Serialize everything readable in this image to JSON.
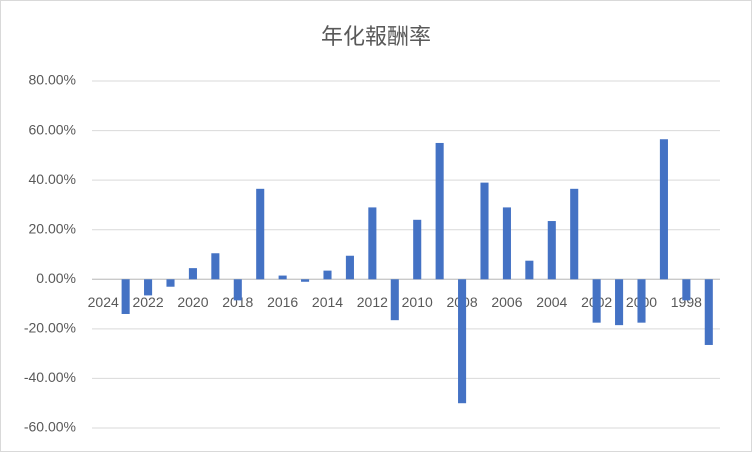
{
  "chart_data": {
    "type": "bar",
    "title": "年化報酬率",
    "categories": [
      "2024",
      null,
      "2022",
      null,
      "2020",
      null,
      "2018",
      null,
      "2016",
      null,
      "2014",
      null,
      "2012",
      null,
      "2010",
      null,
      "2008",
      null,
      "2006",
      null,
      "2004",
      null,
      "2002",
      null,
      "2000",
      null,
      "1998",
      null
    ],
    "values": [
      null,
      -14,
      -6.5,
      -3,
      4.5,
      10.5,
      -8.5,
      36.5,
      1.5,
      -1,
      3.5,
      9.5,
      29,
      -16.5,
      24,
      55,
      -50,
      39,
      29,
      7.5,
      23.5,
      36.5,
      -17.5,
      -18.5,
      -17.5,
      56.5,
      -8.5,
      -26.5
    ],
    "color": "#4472c4",
    "ylim": [
      -60,
      80
    ],
    "yticks": [
      {
        "value": -60,
        "label": "-60.00%"
      },
      {
        "value": -40,
        "label": "-40.00%"
      },
      {
        "value": -20,
        "label": "-20.00%"
      },
      {
        "value": 0,
        "label": "0.00%"
      },
      {
        "value": 20,
        "label": "20.00%"
      },
      {
        "value": 40,
        "label": "40.00%"
      },
      {
        "value": 60,
        "label": "60.00%"
      },
      {
        "value": 80,
        "label": "80.00%"
      }
    ],
    "grid": true
  }
}
